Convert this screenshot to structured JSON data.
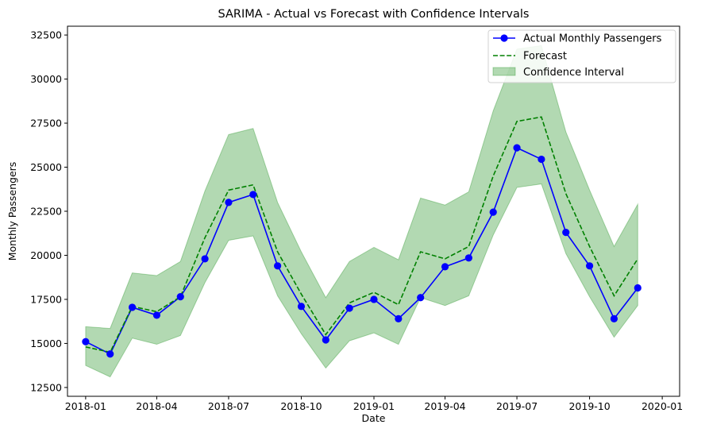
{
  "chart_data": {
    "type": "line",
    "title": "SARIMA - Actual vs Forecast with Confidence Intervals",
    "xlabel": "Date",
    "ylabel": "Monthly Passengers",
    "x": [
      "2018-01",
      "2018-02",
      "2018-03",
      "2018-04",
      "2018-05",
      "2018-06",
      "2018-07",
      "2018-08",
      "2018-09",
      "2018-10",
      "2018-11",
      "2018-12",
      "2019-01",
      "2019-02",
      "2019-03",
      "2019-04",
      "2019-05",
      "2019-06",
      "2019-07",
      "2019-08",
      "2019-09",
      "2019-10",
      "2019-11",
      "2019-12"
    ],
    "xlim": [
      "2017-12-09",
      "2020-01-23"
    ],
    "ylim": [
      12000,
      33000
    ],
    "x_ticks": [
      "2018-01",
      "2018-04",
      "2018-07",
      "2018-10",
      "2019-01",
      "2019-04",
      "2019-07",
      "2019-10",
      "2020-01"
    ],
    "y_ticks": [
      12500,
      15000,
      17500,
      20000,
      22500,
      25000,
      27500,
      30000,
      32500
    ],
    "grid": false,
    "legend_position": "top-right",
    "series": [
      {
        "name": "Actual Monthly Passengers",
        "kind": "line-marker",
        "color": "#0000ff",
        "values": [
          15100,
          14400,
          17050,
          16600,
          17650,
          19800,
          23000,
          23450,
          19400,
          17100,
          15200,
          17000,
          17500,
          16400,
          17600,
          19350,
          19850,
          22450,
          26100,
          25450,
          21300,
          19400,
          16400,
          18150
        ]
      },
      {
        "name": "Forecast",
        "kind": "dashed-line",
        "color": "#008000",
        "values": [
          14800,
          14500,
          17100,
          16800,
          17650,
          21000,
          23700,
          24000,
          20200,
          17800,
          15500,
          17300,
          17900,
          17200,
          20200,
          19800,
          20500,
          24500,
          27600,
          27850,
          23500,
          20500,
          17700,
          19800
        ]
      },
      {
        "name": "Confidence Interval",
        "kind": "band",
        "color": "#008000",
        "lower": [
          13750,
          13100,
          15300,
          14950,
          15450,
          18450,
          20850,
          21100,
          17700,
          15550,
          13600,
          15150,
          15600,
          14950,
          17600,
          17150,
          17700,
          21150,
          23850,
          24050,
          20100,
          17650,
          15350,
          17150
        ],
        "upper": [
          15950,
          15850,
          19000,
          18850,
          19650,
          23650,
          26850,
          27200,
          23000,
          20200,
          17600,
          19650,
          20450,
          19750,
          23250,
          22850,
          23600,
          28200,
          31700,
          31900,
          27000,
          23700,
          20500,
          22900
        ]
      }
    ]
  }
}
